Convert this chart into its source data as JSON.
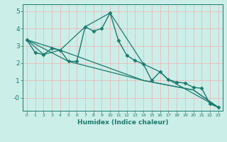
{
  "title": "",
  "xlabel": "Humidex (Indice chaleur)",
  "bg_color": "#cceee8",
  "line_color": "#1a7a6e",
  "grid_color_h": "#f0b0b0",
  "grid_color_v": "#f0b0b0",
  "xlim": [
    -0.5,
    23.5
  ],
  "ylim": [
    -0.75,
    5.4
  ],
  "yticks": [
    0,
    1,
    2,
    3,
    4,
    5
  ],
  "ytick_labels": [
    "-0",
    "1",
    "2",
    "3",
    "4",
    "5"
  ],
  "series1": [
    [
      0,
      3.35
    ],
    [
      1,
      2.6
    ],
    [
      2,
      2.5
    ],
    [
      3,
      2.85
    ],
    [
      4,
      2.75
    ],
    [
      5,
      2.1
    ],
    [
      6,
      2.1
    ],
    [
      7,
      4.1
    ],
    [
      8,
      3.85
    ],
    [
      9,
      4.0
    ],
    [
      10,
      4.9
    ],
    [
      11,
      3.3
    ],
    [
      12,
      2.45
    ],
    [
      13,
      2.15
    ],
    [
      14,
      1.95
    ],
    [
      15,
      1.0
    ],
    [
      16,
      1.5
    ],
    [
      17,
      1.05
    ],
    [
      18,
      0.9
    ],
    [
      19,
      0.85
    ],
    [
      20,
      0.6
    ],
    [
      21,
      0.55
    ],
    [
      22,
      -0.35
    ],
    [
      23,
      -0.55
    ]
  ],
  "series2": [
    [
      0,
      3.35
    ],
    [
      2,
      2.5
    ],
    [
      4,
      2.75
    ],
    [
      7,
      4.1
    ],
    [
      10,
      4.9
    ],
    [
      14,
      1.95
    ],
    [
      16,
      1.5
    ],
    [
      17,
      1.05
    ],
    [
      23,
      -0.55
    ]
  ],
  "series3": [
    [
      0,
      3.35
    ],
    [
      4,
      2.75
    ],
    [
      14,
      1.0
    ],
    [
      20,
      0.45
    ],
    [
      23,
      -0.55
    ]
  ],
  "series4": [
    [
      0,
      3.35
    ],
    [
      5,
      2.1
    ],
    [
      14,
      1.0
    ],
    [
      20,
      0.45
    ],
    [
      23,
      -0.55
    ]
  ]
}
